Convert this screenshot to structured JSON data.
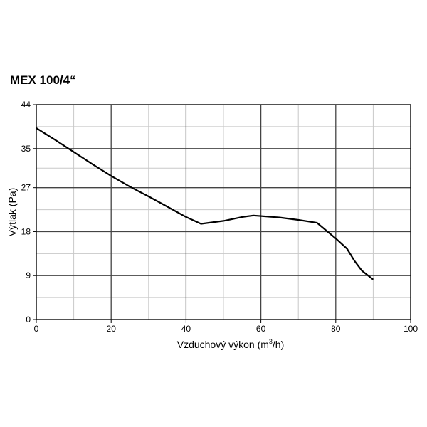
{
  "chart_data": {
    "type": "line",
    "title": "MEX 100/4“",
    "xlabel_main": "Vzduchový výkon (m",
    "xlabel_sup": "3",
    "xlabel_tail": "/h)",
    "ylabel": "Výtlak (Pa)",
    "xlim": [
      0,
      100
    ],
    "ylim": [
      0,
      44
    ],
    "x_ticks": [
      0,
      20,
      40,
      60,
      80,
      100
    ],
    "x_minor": [
      10,
      30,
      50,
      70,
      90
    ],
    "y_ticks": [
      0,
      9,
      18,
      27,
      35,
      44
    ],
    "y_minor": [
      4.5,
      13.5,
      22.5,
      31,
      39.5
    ],
    "grid": true,
    "series": [
      {
        "x": [
          0,
          5,
          10,
          15,
          20,
          25,
          30,
          35,
          40,
          44,
          50,
          55,
          58,
          65,
          70,
          75,
          80,
          83,
          85,
          87,
          90
        ],
        "y": [
          39.2,
          36.8,
          34.3,
          31.8,
          29.4,
          27.2,
          25.2,
          23.1,
          21.0,
          19.6,
          20.2,
          21.0,
          21.3,
          20.9,
          20.4,
          19.8,
          16.6,
          14.5,
          12.0,
          10.0,
          8.2
        ]
      }
    ]
  }
}
